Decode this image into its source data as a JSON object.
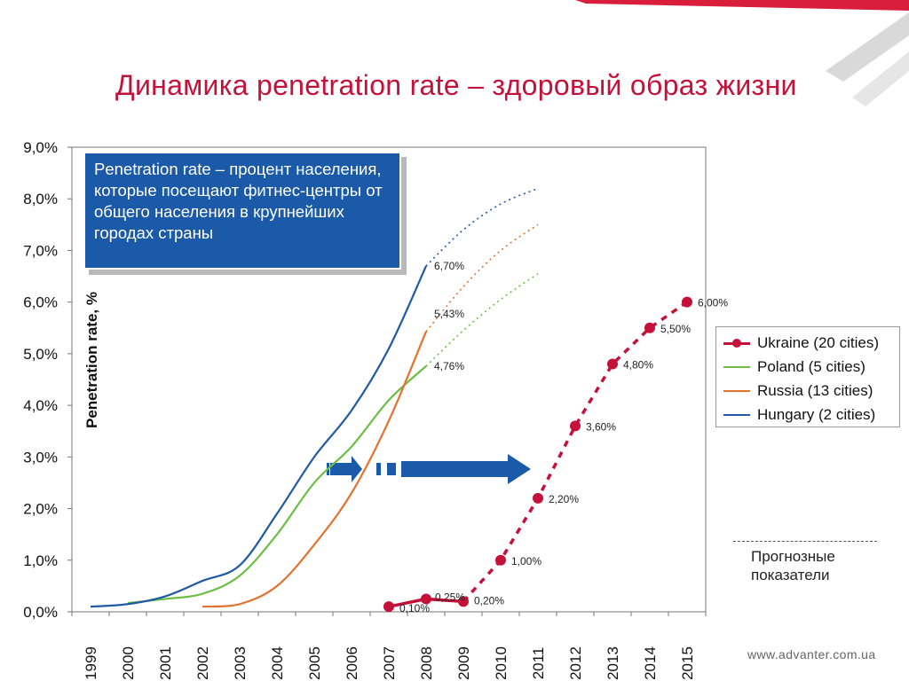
{
  "slide": {
    "title": "Динамика penetration rate – здоровый образ жизни",
    "callout": "Penetration rate – процент населения, которые посещают фитнес-центры от общего населения в крупнейших городах страны",
    "forecast_note": "Прогнозные показатели",
    "website": "www.advanter.com.ua"
  },
  "colors": {
    "title": "#c5113a",
    "ukraine": "#c5113a",
    "poland": "#6cbf44",
    "russia": "#e2722e",
    "hungary": "#1f5aa6",
    "callout_bg": "#1a5aa8",
    "arrow": "#1a5aa8"
  },
  "chart_data": {
    "type": "line",
    "ylabel": "Penetration rate, %",
    "xlabel": "",
    "ylim": [
      0,
      9
    ],
    "y_ticks": [
      "0,0%",
      "1,0%",
      "2,0%",
      "3,0%",
      "4,0%",
      "5,0%",
      "6,0%",
      "7,0%",
      "8,0%",
      "9,0%"
    ],
    "categories": [
      "1999",
      "2000",
      "2001",
      "2002",
      "2003",
      "2004",
      "2005",
      "2006",
      "2007",
      "2008",
      "2009",
      "2010",
      "2011",
      "2012",
      "2013",
      "2014",
      "2015"
    ],
    "legend_position": "right",
    "grid": false,
    "series": [
      {
        "name": "Ukraine (20 cities)",
        "color_key": "ukraine",
        "style": "solid-then-dashed-markers",
        "points": [
          {
            "x": 2007,
            "y": 0.1,
            "label": "0,10%"
          },
          {
            "x": 2008,
            "y": 0.25,
            "label": "0,25%"
          },
          {
            "x": 2009,
            "y": 0.2,
            "label": "0,20%"
          },
          {
            "x": 2010,
            "y": 1.0,
            "label": "1,00%"
          },
          {
            "x": 2011,
            "y": 2.2,
            "label": "2,20%"
          },
          {
            "x": 2012,
            "y": 3.6,
            "label": "3,60%"
          },
          {
            "x": 2013,
            "y": 4.8,
            "label": "4,80%"
          },
          {
            "x": 2014,
            "y": 5.5,
            "label": "5,50%"
          },
          {
            "x": 2015,
            "y": 6.0,
            "label": "6,00%"
          }
        ],
        "forecast_from": 2009
      },
      {
        "name": "Poland (5 cities)",
        "color_key": "poland",
        "points": [
          {
            "x": 2000,
            "y": 0.17
          },
          {
            "x": 2001,
            "y": 0.25
          },
          {
            "x": 2002,
            "y": 0.35
          },
          {
            "x": 2003,
            "y": 0.7
          },
          {
            "x": 2004,
            "y": 1.5
          },
          {
            "x": 2005,
            "y": 2.5
          },
          {
            "x": 2006,
            "y": 3.2
          },
          {
            "x": 2007,
            "y": 4.1
          },
          {
            "x": 2008,
            "y": 4.76,
            "label": "4,76%"
          }
        ],
        "forecast": [
          {
            "x": 2008,
            "y": 4.76
          },
          {
            "x": 2009,
            "y": 5.45
          },
          {
            "x": 2010,
            "y": 6.05
          },
          {
            "x": 2011,
            "y": 6.55
          }
        ]
      },
      {
        "name": "Russia (13 cities)",
        "color_key": "russia",
        "points": [
          {
            "x": 2002,
            "y": 0.1
          },
          {
            "x": 2003,
            "y": 0.15
          },
          {
            "x": 2004,
            "y": 0.5
          },
          {
            "x": 2005,
            "y": 1.3
          },
          {
            "x": 2006,
            "y": 2.3
          },
          {
            "x": 2007,
            "y": 3.7
          },
          {
            "x": 2008,
            "y": 5.43,
            "label": "5,43%"
          }
        ],
        "forecast": [
          {
            "x": 2008,
            "y": 5.43
          },
          {
            "x": 2009,
            "y": 6.3
          },
          {
            "x": 2010,
            "y": 7.0
          },
          {
            "x": 2011,
            "y": 7.5
          }
        ]
      },
      {
        "name": "Hungary (2 cities)",
        "color_key": "hungary",
        "points": [
          {
            "x": 1999,
            "y": 0.1
          },
          {
            "x": 2000,
            "y": 0.15
          },
          {
            "x": 2001,
            "y": 0.3
          },
          {
            "x": 2002,
            "y": 0.6
          },
          {
            "x": 2003,
            "y": 0.9
          },
          {
            "x": 2004,
            "y": 1.9
          },
          {
            "x": 2005,
            "y": 3.0
          },
          {
            "x": 2006,
            "y": 3.9
          },
          {
            "x": 2007,
            "y": 5.1
          },
          {
            "x": 2008,
            "y": 6.7,
            "label": "6,70%"
          }
        ],
        "forecast": [
          {
            "x": 2008,
            "y": 6.7
          },
          {
            "x": 2009,
            "y": 7.4
          },
          {
            "x": 2010,
            "y": 7.9
          },
          {
            "x": 2011,
            "y": 8.2
          }
        ]
      }
    ]
  }
}
